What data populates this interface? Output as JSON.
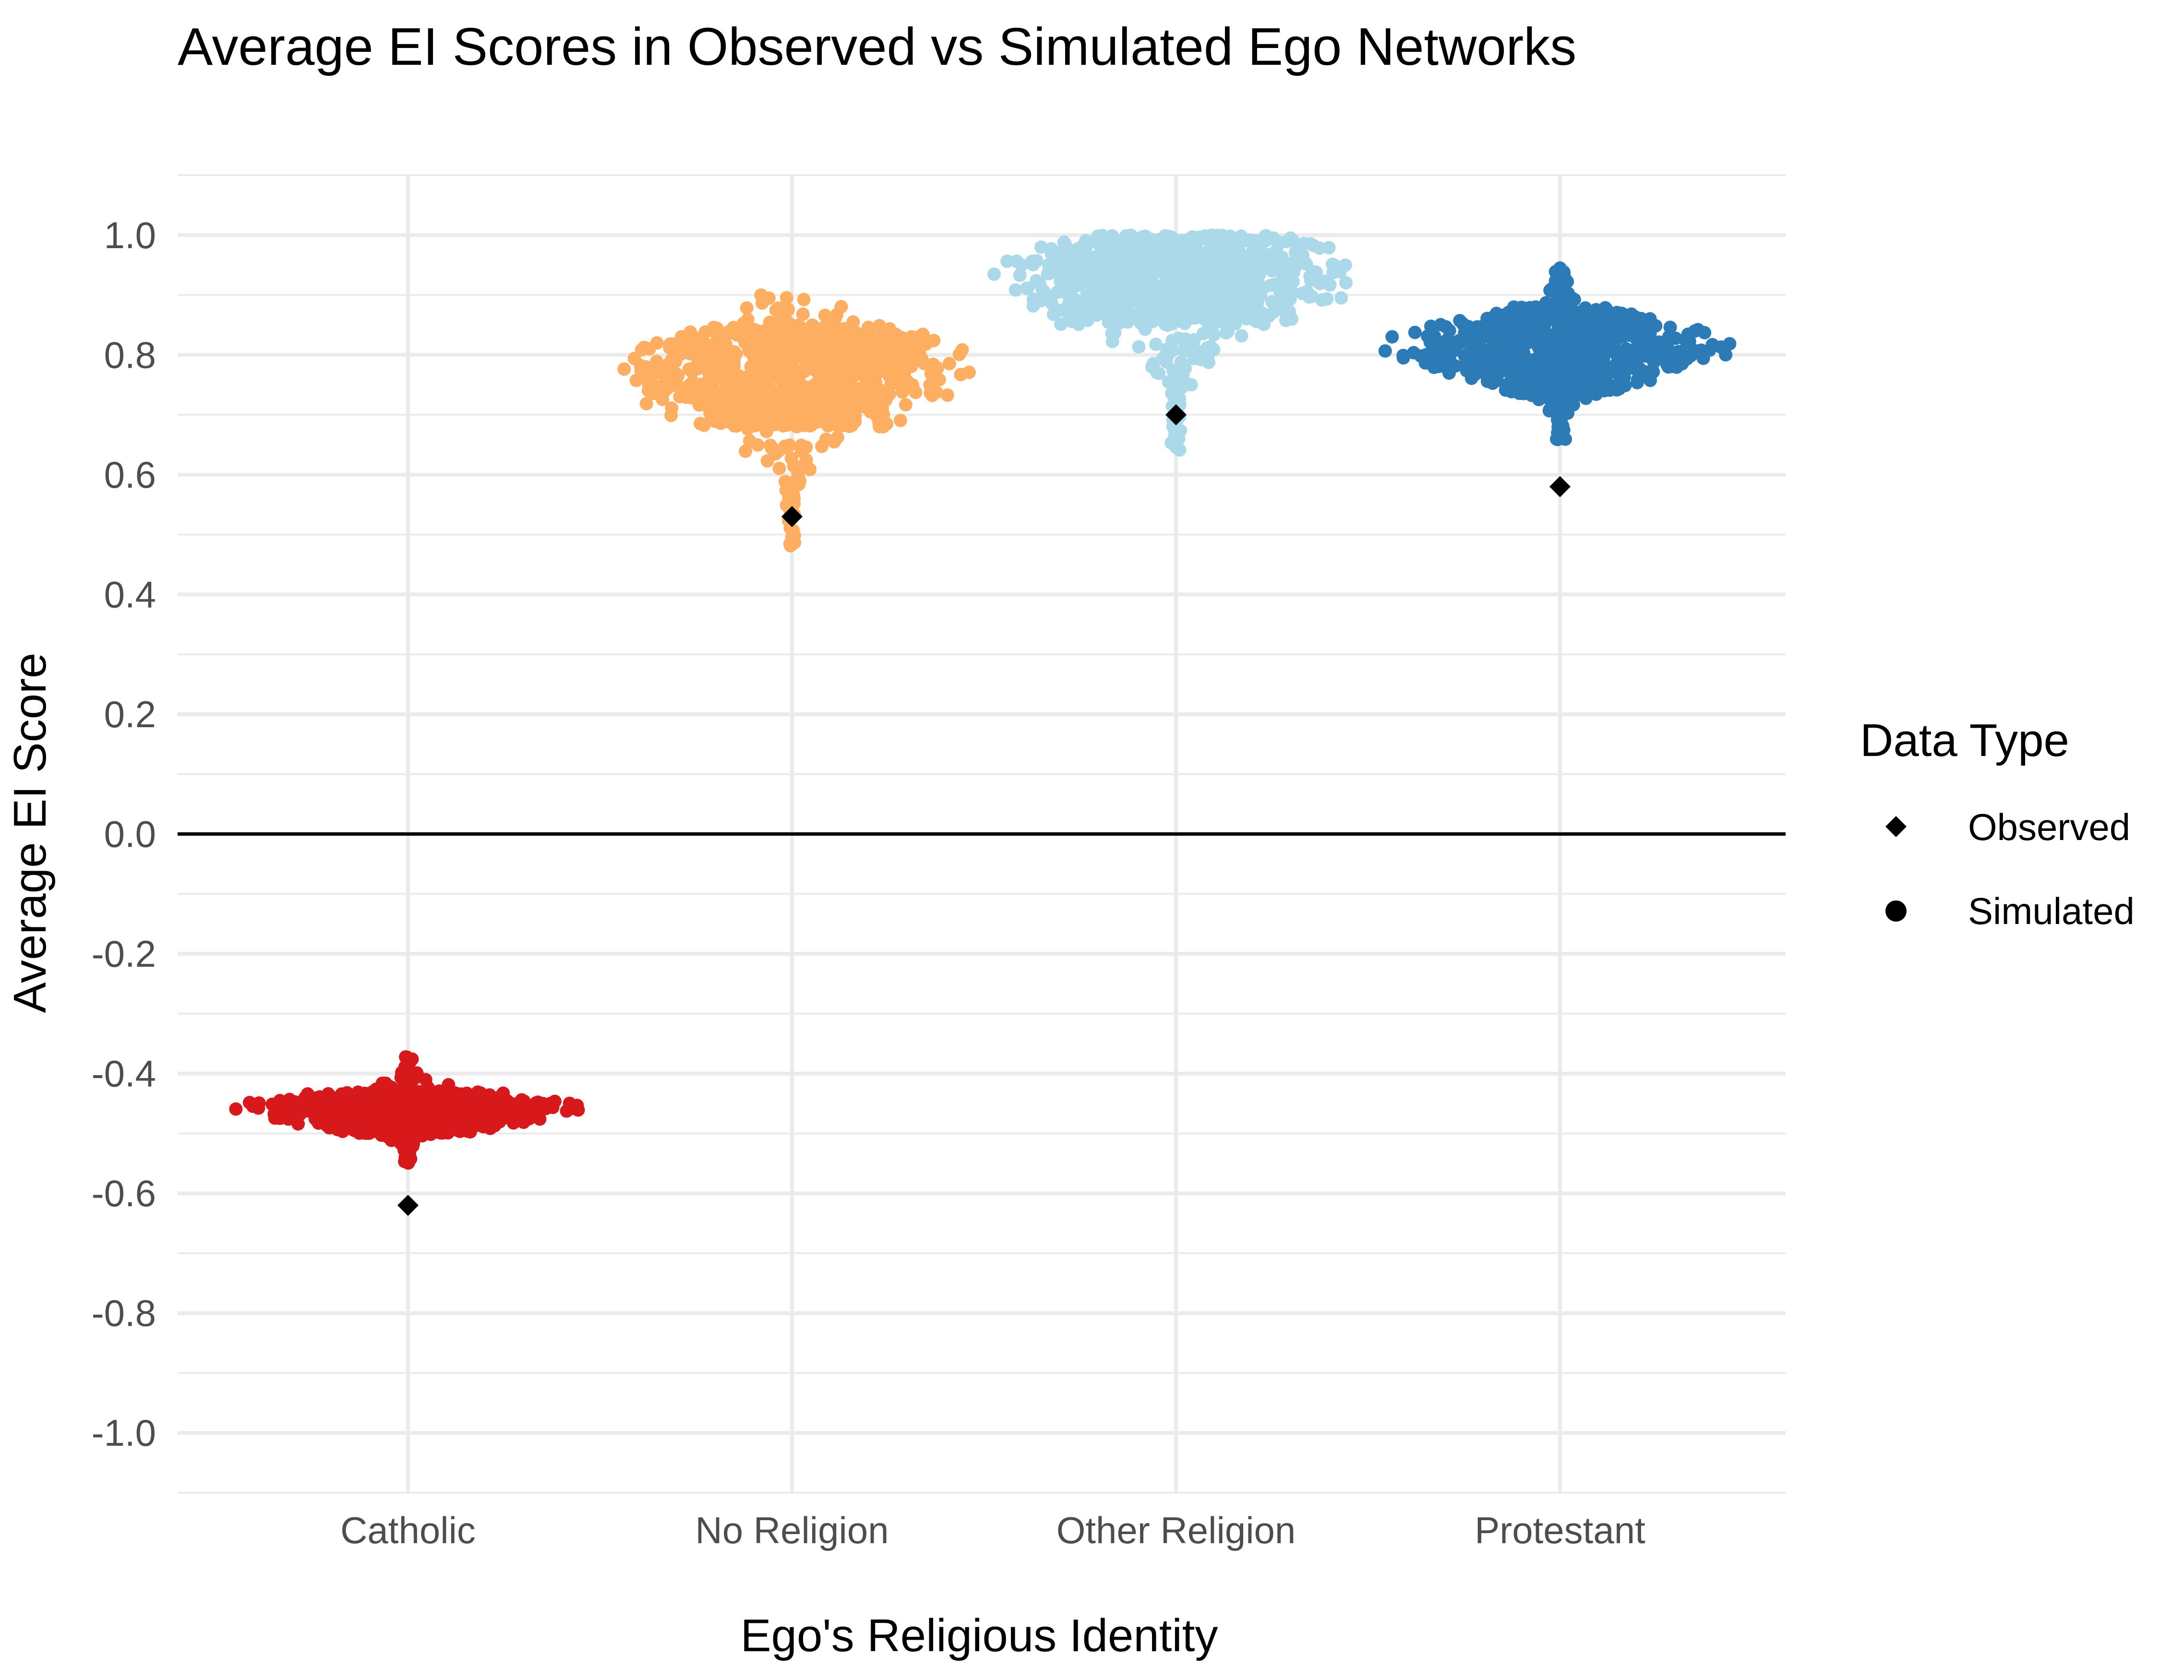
{
  "chart_data": {
    "type": "scatter",
    "subtype": "beeswarm",
    "title": "Average EI Scores in Observed vs Simulated Ego Networks",
    "xlabel": "Ego's Religious Identity",
    "ylabel": "Average EI Score",
    "ylim": [
      -1.1,
      1.1
    ],
    "yticks": [
      "1.0",
      "0.8",
      "0.6",
      "0.4",
      "0.2",
      "0.0",
      "-0.2",
      "-0.4",
      "-0.6",
      "-0.8",
      "-1.0"
    ],
    "ytick_values": [
      1.0,
      0.8,
      0.6,
      0.4,
      0.2,
      0.0,
      -0.2,
      -0.4,
      -0.6,
      -0.8,
      -1.0
    ],
    "categories": [
      "Catholic",
      "No Religion",
      "Other Religion",
      "Protestant"
    ],
    "grid": true,
    "reference_line_y": 0.0,
    "legend": {
      "title": "Data Type",
      "position": "right",
      "entries": [
        {
          "label": "Observed",
          "shape": "diamond"
        },
        {
          "label": "Simulated",
          "shape": "circle"
        }
      ]
    },
    "series": [
      {
        "category": "Catholic",
        "color": "#d7191c",
        "simulated": {
          "center": -0.46,
          "min": -0.55,
          "max": -0.37,
          "core_low": -0.5,
          "core_high": -0.43
        },
        "observed": -0.62
      },
      {
        "category": "No Religion",
        "color": "#fdae61",
        "simulated": {
          "center": 0.77,
          "min": 0.48,
          "max": 0.9,
          "core_low": 0.68,
          "core_high": 0.85
        },
        "observed": 0.53
      },
      {
        "category": "Other Religion",
        "color": "#abd9e9",
        "simulated": {
          "center": 0.93,
          "min": 0.64,
          "max": 1.0,
          "core_low": 0.85,
          "core_high": 1.0
        },
        "observed": 0.7
      },
      {
        "category": "Protestant",
        "color": "#2c7bb6",
        "simulated": {
          "center": 0.81,
          "min": 0.65,
          "max": 0.96,
          "core_low": 0.73,
          "core_high": 0.88
        },
        "observed": 0.58
      }
    ]
  }
}
